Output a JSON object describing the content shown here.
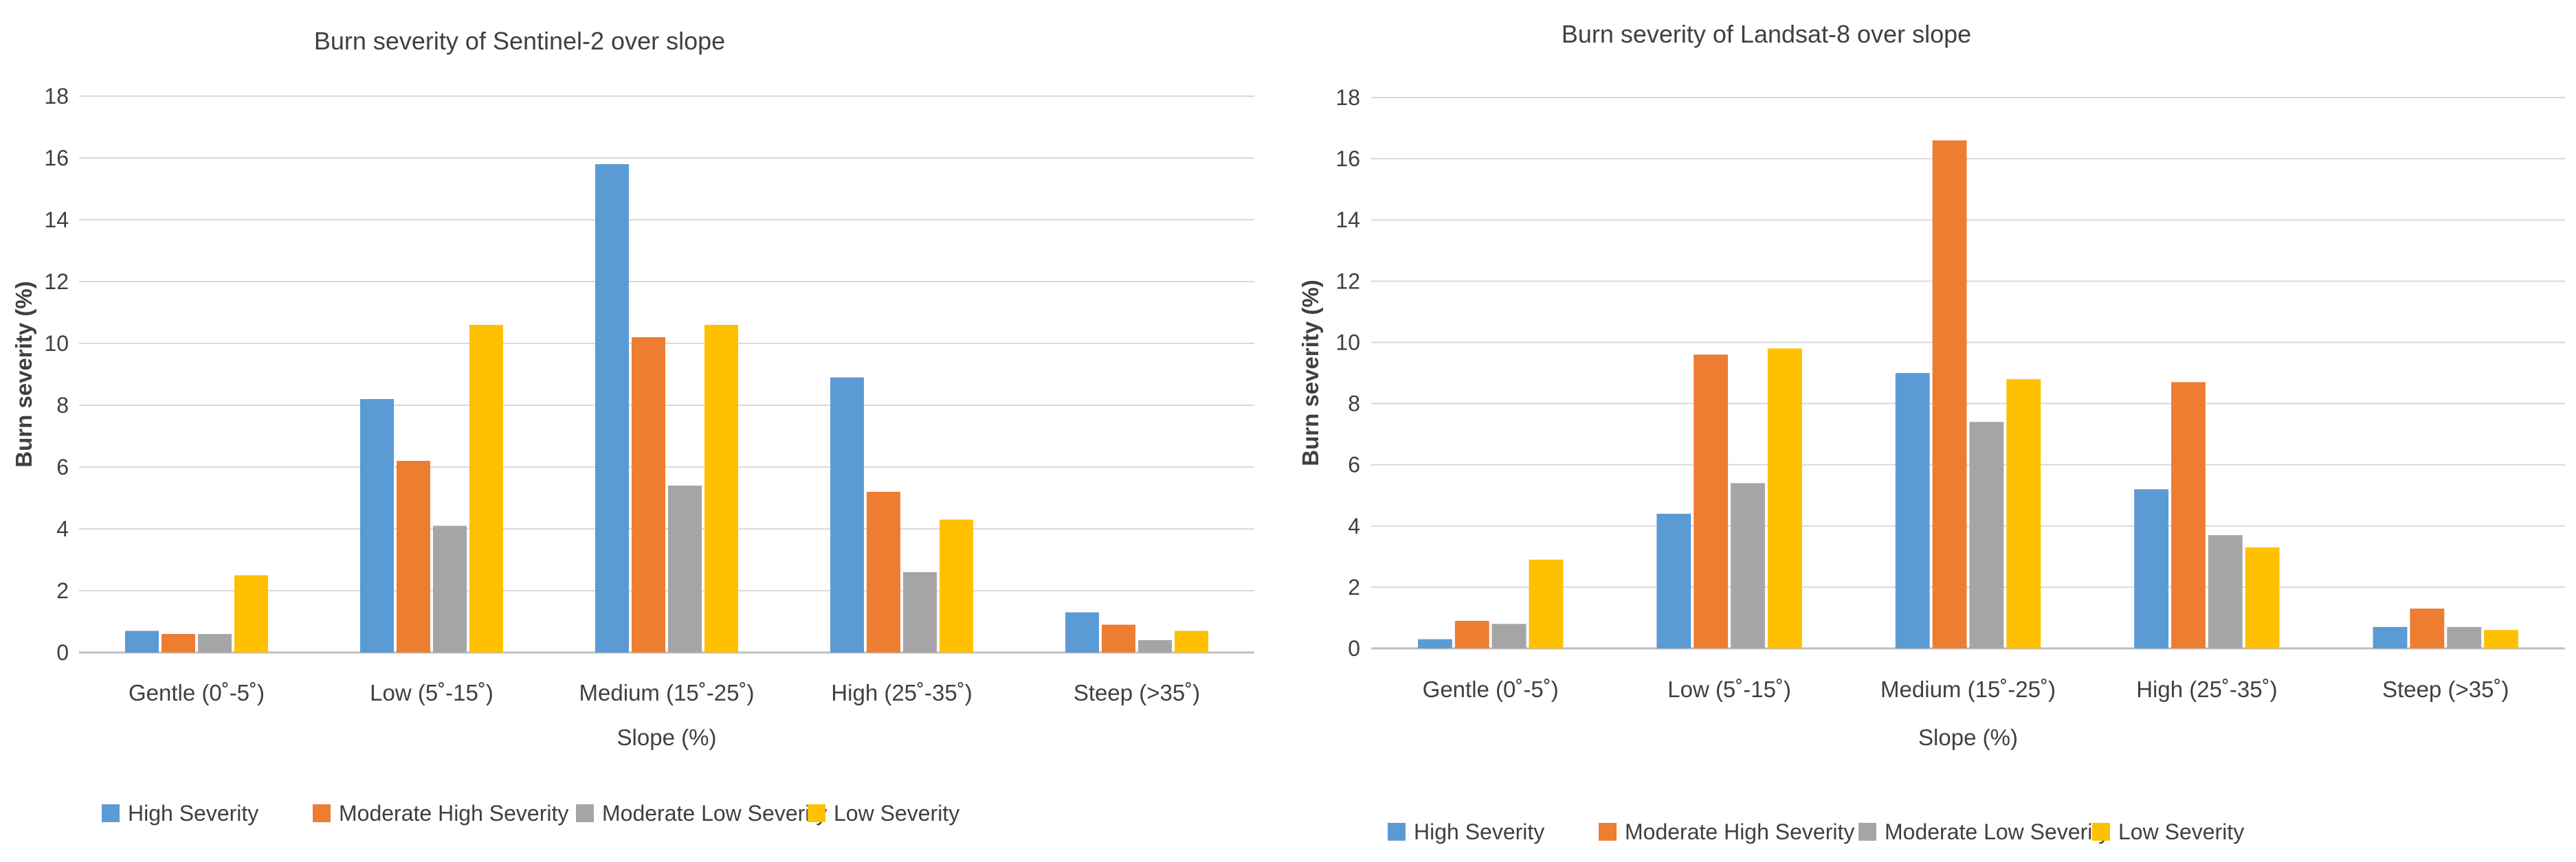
{
  "colors": {
    "high": "#5B9BD5",
    "moderate_high": "#ED7D31",
    "moderate_low": "#A5A5A5",
    "low": "#FFC000",
    "grid": "#D9D9D9",
    "text": "#404040"
  },
  "chart_data": [
    {
      "type": "bar",
      "title": "Burn severity of Sentinel-2 over slope",
      "xlabel": "Slope (%)",
      "ylabel": "Burn severity (%)",
      "ylim": [
        0,
        18
      ],
      "yticks": [
        "0",
        "2",
        "4",
        "6",
        "8",
        "10",
        "12",
        "14",
        "16",
        "18"
      ],
      "grid": true,
      "legend_position": "bottom",
      "categories": [
        "Gentle (0˚-5˚)",
        "Low (5˚-15˚)",
        "Medium (15˚-25˚)",
        "High (25˚-35˚)",
        "Steep (>35˚)"
      ],
      "series": [
        {
          "name": "High Severity",
          "key": "high",
          "values": [
            0.7,
            8.2,
            15.8,
            8.9,
            1.3
          ]
        },
        {
          "name": "Moderate High Severity",
          "key": "moderate_high",
          "values": [
            0.6,
            6.2,
            10.2,
            5.2,
            0.9
          ]
        },
        {
          "name": "Moderate Low Severity",
          "key": "moderate_low",
          "values": [
            0.6,
            4.1,
            5.4,
            2.6,
            0.4
          ]
        },
        {
          "name": "Low Severity",
          "key": "low",
          "values": [
            2.5,
            10.6,
            10.6,
            4.3,
            0.7
          ]
        }
      ]
    },
    {
      "type": "bar",
      "title": "Burn severity of Landsat-8 over slope",
      "xlabel": "Slope (%)",
      "ylabel": "Burn severity (%)",
      "ylim": [
        0,
        18
      ],
      "yticks": [
        "0",
        "2",
        "4",
        "6",
        "8",
        "10",
        "12",
        "14",
        "16",
        "18"
      ],
      "grid": true,
      "legend_position": "bottom",
      "categories": [
        "Gentle (0˚-5˚)",
        "Low (5˚-15˚)",
        "Medium (15˚-25˚)",
        "High (25˚-35˚)",
        "Steep (>35˚)"
      ],
      "series": [
        {
          "name": "High Severity",
          "key": "high",
          "values": [
            0.3,
            4.4,
            9.0,
            5.2,
            0.7
          ]
        },
        {
          "name": "Moderate High Severity",
          "key": "moderate_high",
          "values": [
            0.9,
            9.6,
            16.6,
            8.7,
            1.3
          ]
        },
        {
          "name": "Moderate Low Severity",
          "key": "moderate_low",
          "values": [
            0.8,
            5.4,
            7.4,
            3.7,
            0.7
          ]
        },
        {
          "name": "Low Severity",
          "key": "low",
          "values": [
            2.9,
            9.8,
            8.8,
            3.3,
            0.6
          ]
        }
      ]
    }
  ]
}
